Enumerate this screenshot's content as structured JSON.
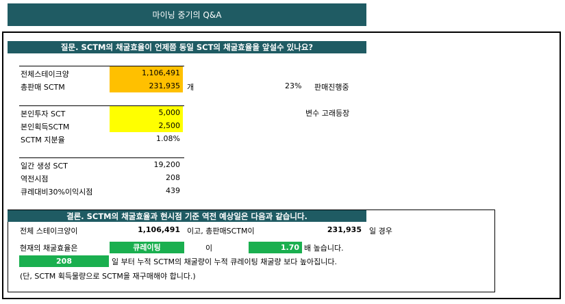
{
  "title": "마이닝 중기의 Q&A",
  "question": "질문. SCTM의 채굴효율이 언제쯤 동일 SCT의 채굴효율을 앞설수 있나요?",
  "stats": {
    "group1": [
      {
        "label": "전체스테이크양",
        "value": "1,106,491"
      },
      {
        "label": "총판매 SCTM",
        "value": "231,935"
      }
    ],
    "unit": "개",
    "percent": "23%",
    "percent_label": "판매진행중",
    "group2": [
      {
        "label": "본인투자 SCT",
        "value": "5,000"
      },
      {
        "label": "본인획득SCTM",
        "value": "2,500"
      },
      {
        "label": "SCTM 지분율",
        "value": "1.08%"
      }
    ],
    "note": "변수 고래등장",
    "group3": [
      {
        "label": "일간 생성 SCT",
        "value": "19,200"
      },
      {
        "label": "역전시점",
        "value": "208"
      },
      {
        "label": "큐레대비30%이익시점",
        "value": "439"
      }
    ]
  },
  "conclusion": {
    "heading": "결론. SCTM의 채굴효율과 현시점 기준 역전 예상일은 다음과 같습니다.",
    "line1": {
      "prefix": "전체 스테이크양이",
      "stake": "1,106,491",
      "mid": "이고, 총판매SCTM이",
      "sold": "231,935",
      "suffix": "일 경우"
    },
    "line2": {
      "prefix": "현재의 채굴효율은",
      "badge": "큐레이팅",
      "particle": "이",
      "ratio": "1.70",
      "suffix": "배 높습니다."
    },
    "line3": {
      "days": "208",
      "text": "일 부터 누적 SCTM의 채굴량이 누적 큐레이팅 채굴량 보다 높아집니다."
    },
    "line4": "(단, SCTM 획득물량으로 SCTM을 재구매해야 합니다.)"
  }
}
